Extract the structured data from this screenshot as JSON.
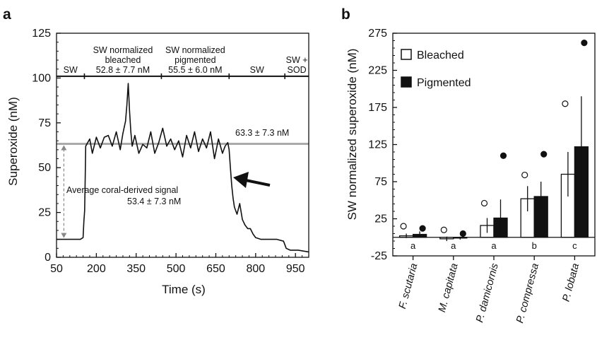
{
  "chart_data": [
    {
      "panel": "a",
      "type": "line",
      "xlabel": "Time (s)",
      "ylabel": "Superoxide (nM)",
      "xlim": [
        50,
        1000
      ],
      "ylim": [
        0,
        125
      ],
      "xticks": [
        50,
        200,
        350,
        500,
        650,
        800,
        950
      ],
      "yticks": [
        0,
        25,
        50,
        75,
        100,
        125
      ],
      "segments": [
        {
          "lines": [
            "SW"
          ],
          "x_range": [
            50,
            155
          ]
        },
        {
          "lines": [
            "SW normalized",
            "bleached",
            "52.8 ± 7.7 nM"
          ],
          "x_range": [
            155,
            445
          ]
        },
        {
          "lines": [
            "SW normalized",
            "pigmented",
            "55.5 ± 6.0 nM"
          ],
          "x_range": [
            445,
            700
          ]
        },
        {
          "lines": [
            "SW"
          ],
          "x_range": [
            700,
            910
          ]
        },
        {
          "lines": [
            "SW +",
            "SOD"
          ],
          "x_range": [
            910,
            1000
          ]
        }
      ],
      "segment_line_y": 101,
      "mean_line": {
        "value": 63.3,
        "label": "63.3 ± 7.3 nM"
      },
      "baseline_value": 10,
      "signal_annotation": {
        "lines": [
          "Average coral-derived signal",
          "53.4 ± 7.3 nM"
        ]
      },
      "series": [
        {
          "x": [
            50,
            80,
            110,
            140,
            150,
            153,
            156,
            158,
            160,
            175,
            185,
            200,
            215,
            230,
            245,
            260,
            275,
            290,
            300,
            310,
            315,
            320,
            325,
            330,
            335,
            345,
            360,
            375,
            390,
            405,
            420,
            435,
            450,
            465,
            480,
            495,
            510,
            525,
            540,
            555,
            570,
            585,
            600,
            615,
            630,
            645,
            660,
            675,
            685,
            695,
            700,
            705,
            710,
            715,
            720,
            730,
            740,
            750,
            760,
            770,
            780,
            790,
            800,
            820,
            850,
            880,
            905,
            915,
            930,
            960,
            1000
          ],
          "y": [
            10,
            10,
            10,
            10,
            11,
            20,
            26,
            44,
            62,
            66,
            58,
            67,
            61,
            67,
            68,
            62,
            70,
            60,
            69,
            76,
            85,
            97,
            82,
            70,
            62,
            68,
            58,
            63,
            61,
            70,
            58,
            64,
            72,
            62,
            66,
            60,
            65,
            56,
            68,
            61,
            70,
            59,
            66,
            61,
            70,
            55,
            66,
            58,
            62,
            64,
            60,
            50,
            40,
            33,
            28,
            24,
            30,
            21,
            18,
            16,
            16,
            13,
            11,
            10,
            10,
            10,
            9,
            5,
            4,
            4,
            3
          ]
        }
      ]
    },
    {
      "panel": "b",
      "type": "bar",
      "ylabel": "SW normalized superoxide (nM)",
      "ylim": [
        -25,
        275
      ],
      "yticks": [
        -25,
        25,
        75,
        125,
        175,
        225,
        275
      ],
      "categories": [
        "F. scutaria",
        "M. capitata",
        "P. damicornis",
        "P. compressa",
        "P. lobata"
      ],
      "significance": [
        "a",
        "a",
        "a",
        "b",
        "c"
      ],
      "legend": {
        "position": "top-left",
        "entries": [
          "Bleached",
          "Pigmented"
        ]
      },
      "series": [
        {
          "name": "Bleached",
          "values": [
            2,
            -2,
            16,
            52,
            85
          ],
          "error": [
            3,
            3,
            10,
            17,
            30
          ],
          "max_point": [
            15,
            10,
            46,
            84,
            180
          ],
          "fill": "#ffffff"
        },
        {
          "name": "Pigmented",
          "values": [
            4,
            -1,
            26,
            55,
            122
          ],
          "error": [
            4,
            2,
            25,
            20,
            68
          ],
          "max_point": [
            12,
            5,
            110,
            112,
            262
          ],
          "fill": "#111111"
        }
      ]
    }
  ]
}
